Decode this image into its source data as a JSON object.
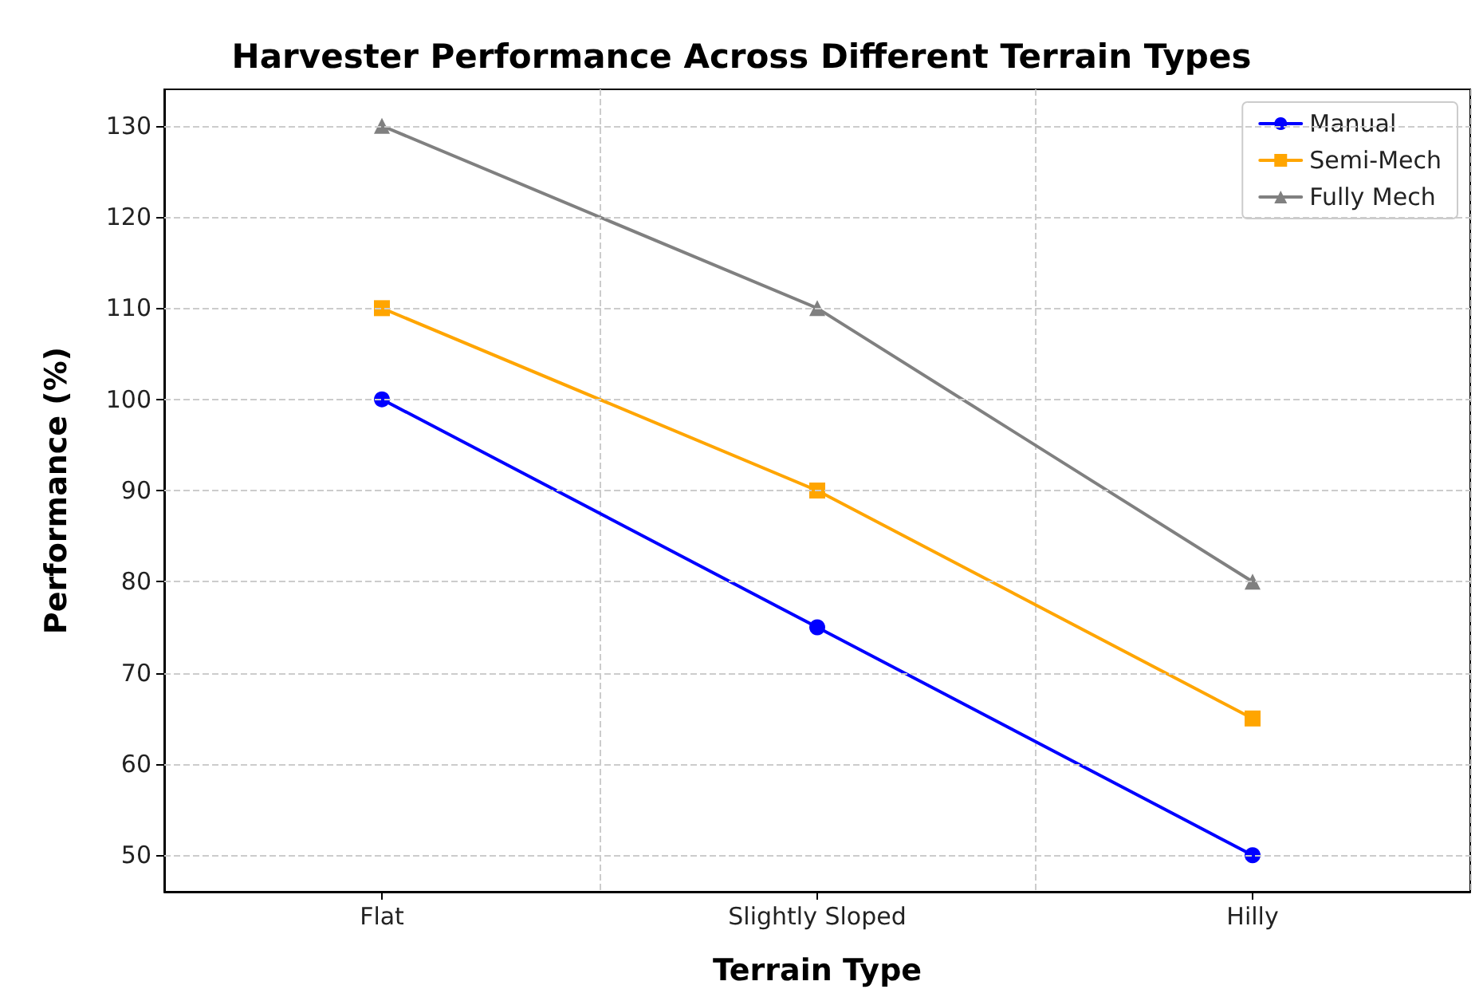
{
  "chart_data": {
    "type": "line",
    "title": "Harvester Performance Across Different Terrain Types",
    "xlabel": "Terrain Type",
    "ylabel": "Performance (%)",
    "categories": [
      "Flat",
      "Slightly Sloped",
      "Hilly"
    ],
    "series": [
      {
        "name": "Manual",
        "color": "#0000ff",
        "values": [
          100,
          75,
          50
        ],
        "marker": "circle"
      },
      {
        "name": "Semi-Mech",
        "color": "#ffa500",
        "values": [
          110,
          90,
          65
        ],
        "marker": "square"
      },
      {
        "name": "Fully Mech",
        "color": "#808080",
        "values": [
          130,
          110,
          80
        ],
        "marker": "triangle"
      }
    ],
    "ylim": [
      46,
      134
    ],
    "yticks": [
      50,
      60,
      70,
      80,
      90,
      100,
      110,
      120,
      130
    ],
    "grid": true,
    "legend": "top right",
    "line_style": "solid"
  }
}
